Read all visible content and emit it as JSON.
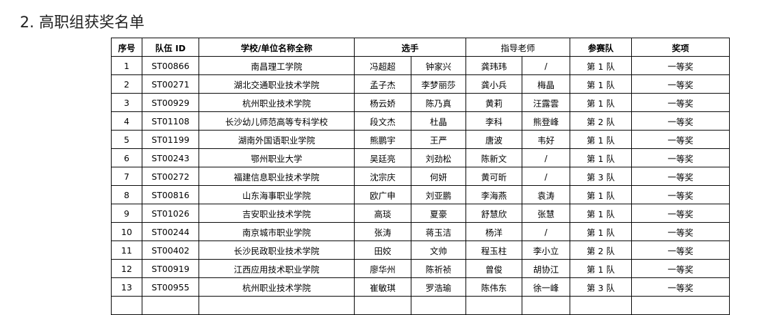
{
  "title": "2.  高职组获奖名单",
  "headers": {
    "index": "序号",
    "team_id": "队伍 ID",
    "school": "学校/单位名称全称",
    "players": "选手",
    "advisors": "指导老师",
    "team": "参赛队",
    "award": "奖项"
  },
  "rows": [
    [
      "1",
      "ST00866",
      "南昌理工学院",
      "冯超超",
      "钟家兴",
      "龚玮玮",
      "/",
      "第 1 队",
      "一等奖"
    ],
    [
      "2",
      "ST00271",
      "湖北交通职业技术学院",
      "孟子杰",
      "李梦丽莎",
      "龚小兵",
      "梅晶",
      "第 1 队",
      "一等奖"
    ],
    [
      "3",
      "ST00929",
      "杭州职业技术学院",
      "杨云娇",
      "陈乃真",
      "黄莉",
      "汪露雲",
      "第 1 队",
      "一等奖"
    ],
    [
      "4",
      "ST01108",
      "长沙幼儿师范高等专科学校",
      "段文杰",
      "杜晶",
      "李科",
      "熊登峰",
      "第 2 队",
      "一等奖"
    ],
    [
      "5",
      "ST01199",
      "湖南外国语职业学院",
      "熊鹏宇",
      "王严",
      "唐波",
      "韦好",
      "第 1 队",
      "一等奖"
    ],
    [
      "6",
      "ST00243",
      "鄂州职业大学",
      "吴廷亮",
      "刘劲松",
      "陈新文",
      "/",
      "第 1 队",
      "一等奖"
    ],
    [
      "7",
      "ST00272",
      "福建信息职业技术学院",
      "沈宗庆",
      "何妍",
      "黄可昕",
      "/",
      "第 3 队",
      "一等奖"
    ],
    [
      "8",
      "ST00816",
      "山东海事职业学院",
      "欧广申",
      "刘亚鹏",
      "李海燕",
      "袁涛",
      "第 1 队",
      "一等奖"
    ],
    [
      "9",
      "ST01026",
      "吉安职业技术学院",
      "高琰",
      "夏豪",
      "舒慧欣",
      "张慧",
      "第 1 队",
      "一等奖"
    ],
    [
      "10",
      "ST00244",
      "南京城市职业学院",
      "张涛",
      "蒋玉洁",
      "杨洋",
      "/",
      "第 1 队",
      "一等奖"
    ],
    [
      "11",
      "ST00402",
      "长沙民政职业技术学院",
      "田姣",
      "文帅",
      "程玉柱",
      "李小立",
      "第 2 队",
      "一等奖"
    ],
    [
      "12",
      "ST00919",
      "江西应用技术职业学院",
      "廖华州",
      "陈祈祯",
      "曾俊",
      "胡协江",
      "第 1 队",
      "一等奖"
    ],
    [
      "13",
      "ST00955",
      "杭州职业技术学院",
      "崔敏琪",
      "罗浩瑜",
      "陈伟东",
      "徐一峰",
      "第 3 队",
      "一等奖"
    ]
  ]
}
